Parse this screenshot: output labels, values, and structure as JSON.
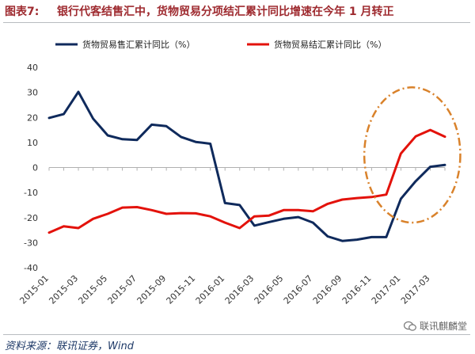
{
  "header": {
    "label": "图表7:",
    "title": "银行代客结售汇中，货物贸易分项结汇累计同比增速在今年 1 月转正"
  },
  "footer": {
    "source": "资料来源：联讯证券，Wind",
    "watermark": "联讯麒麟堂"
  },
  "chart_data": {
    "type": "line",
    "categories": [
      "2015-01",
      "2015-02",
      "2015-03",
      "2015-04",
      "2015-05",
      "2015-06",
      "2015-07",
      "2015-08",
      "2015-09",
      "2015-10",
      "2015-11",
      "2015-12",
      "2016-01",
      "2016-02",
      "2016-03",
      "2016-04",
      "2016-05",
      "2016-06",
      "2016-07",
      "2016-08",
      "2016-09",
      "2016-10",
      "2016-11",
      "2016-12",
      "2017-01",
      "2017-02",
      "2017-03",
      "2017-04"
    ],
    "tick_labels": [
      "2015-01",
      "2015-03",
      "2015-05",
      "2015-07",
      "2015-09",
      "2015-11",
      "2016-01",
      "2016-03",
      "2016-05",
      "2016-07",
      "2016-09",
      "2016-11",
      "2017-01",
      "2017-03"
    ],
    "ylim": [
      -40,
      40
    ],
    "yticks": [
      40,
      30,
      20,
      10,
      0,
      -10,
      -20,
      -30,
      -40
    ],
    "series": [
      {
        "name": "货物贸易售汇累计同比（%）",
        "color": "#0f2a5c",
        "values": [
          19.8,
          21.3,
          30.2,
          19.5,
          12.8,
          11.3,
          11.0,
          17.1,
          16.5,
          12.2,
          10.2,
          9.5,
          -14.2,
          -15.0,
          -23.2,
          -21.8,
          -20.5,
          -19.8,
          -22.0,
          -27.5,
          -29.3,
          -28.8,
          -27.8,
          -27.8,
          -12.5,
          -5.5,
          0.3,
          1.0
        ]
      },
      {
        "name": "货物贸易结汇累计同比（%）",
        "color": "#e3120b",
        "values": [
          -26.0,
          -23.5,
          -24.2,
          -20.5,
          -18.5,
          -16.0,
          -15.8,
          -17.0,
          -18.5,
          -18.2,
          -18.3,
          -19.5,
          -22.0,
          -24.2,
          -19.5,
          -19.2,
          -17.0,
          -17.0,
          -17.5,
          -14.5,
          -12.8,
          -12.2,
          -11.8,
          -10.8,
          5.6,
          12.4,
          15.0,
          12.3
        ]
      }
    ],
    "annotation": {
      "type": "dashed-ellipse",
      "color": "#d9822b",
      "x_range": [
        "2016-11",
        "2017-05"
      ],
      "y_range": [
        -22,
        32
      ]
    }
  }
}
